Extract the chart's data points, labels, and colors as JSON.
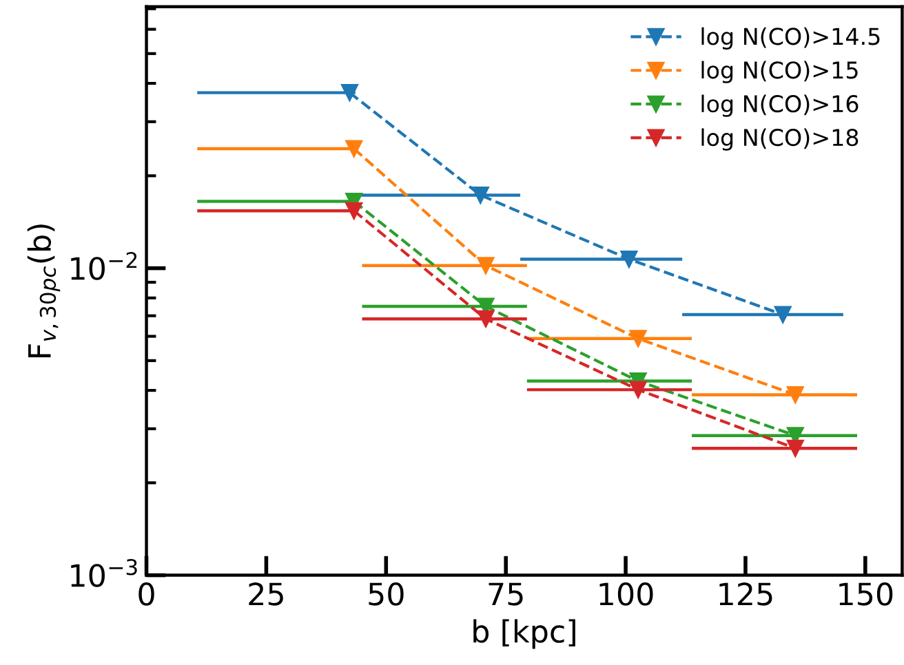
{
  "chart_data": {
    "type": "line",
    "xlabel": "b [kpc]",
    "ylabel": "F$_{v,30pc}$(b)",
    "log": "y",
    "xlim": [
      0,
      157.7
    ],
    "xticks": [
      0,
      25,
      50,
      75,
      100,
      125,
      150
    ],
    "ylim": [
      0.001,
      0.0711
    ],
    "yticks": [
      {
        "value": 0.001,
        "label": "10$^{−3}$"
      },
      {
        "value": 0.01,
        "label": "10$^{−2}$"
      }
    ],
    "marker": "triangle",
    "line_style": "dashed",
    "legend": "top right",
    "grid": false,
    "series": [
      {
        "name": "log N(CO)>14.5",
        "color": "#1f77b4",
        "x": [
          42.4,
          69.7,
          100.7,
          132.8
        ],
        "values": [
          0.0373,
          0.0173,
          0.0107,
          0.00706
        ],
        "xerrors": [
          [
            10.6,
            43.6
          ],
          [
            43.0,
            78.0
          ],
          [
            78.0,
            111.8
          ],
          [
            111.8,
            145.4
          ]
        ]
      },
      {
        "name": "log N(CO)>15",
        "color": "#ff7f0e",
        "x": [
          43.3,
          70.8,
          102.6,
          135.4
        ],
        "values": [
          0.0245,
          0.0102,
          0.0059,
          0.00387
        ],
        "xerrors": [
          [
            10.6,
            43.6
          ],
          [
            45.0,
            79.4
          ],
          [
            79.4,
            113.8
          ],
          [
            113.8,
            148.3
          ]
        ]
      },
      {
        "name": "log N(CO)>16",
        "color": "#2ca02c",
        "x": [
          43.3,
          70.8,
          102.6,
          135.4
        ],
        "values": [
          0.0165,
          0.00751,
          0.00429,
          0.00285
        ],
        "xerrors": [
          [
            10.6,
            43.6
          ],
          [
            45.0,
            79.4
          ],
          [
            79.4,
            113.8
          ],
          [
            113.8,
            148.3
          ]
        ]
      },
      {
        "name": "log N(CO)>18",
        "color": "#d62728",
        "x": [
          43.3,
          70.8,
          102.6,
          135.4
        ],
        "values": [
          0.01538,
          0.00684,
          0.00402,
          0.00259
        ],
        "xerrors": [
          [
            10.6,
            43.6
          ],
          [
            45.0,
            79.4
          ],
          [
            79.4,
            113.8
          ],
          [
            113.8,
            148.3
          ]
        ]
      }
    ]
  }
}
